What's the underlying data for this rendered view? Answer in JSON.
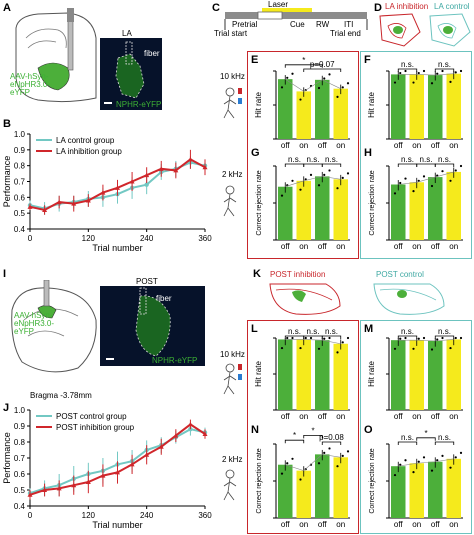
{
  "panels": {
    "A": {
      "letter": "A",
      "la": "LA",
      "fiber": "fiber",
      "virus": [
        "AAV-hSyn-",
        "eNpHR3.0-",
        "eYFP"
      ],
      "npHR": "NPHR-eYFP"
    },
    "B": {
      "letter": "B"
    },
    "C": {
      "letter": "C",
      "laser": "Laser",
      "pretrial": "Pretrial",
      "cue": "Cue",
      "rw": "RW",
      "iti": "ITI",
      "trial_start": "Trial start",
      "trial_end": "Trial end"
    },
    "D": {
      "letter": "D",
      "inhibition": "LA inhibition",
      "control": "LA control"
    },
    "E": {
      "letter": "E"
    },
    "F": {
      "letter": "F"
    },
    "G": {
      "letter": "G"
    },
    "H": {
      "letter": "H"
    },
    "I": {
      "letter": "I",
      "post": "POST",
      "fiber": "fiber",
      "virus": [
        "AAV-hSyn-",
        "eNpHR3.0-",
        "eYFP"
      ],
      "npHR": "NPHR-eYFP",
      "bregma": "Bragma -3.78mm"
    },
    "J": {
      "letter": "J"
    },
    "K": {
      "letter": "K",
      "inhibition": "POST inhibition",
      "control": "POST control"
    },
    "L": {
      "letter": "L"
    },
    "M": {
      "letter": "M"
    },
    "N": {
      "letter": "N"
    },
    "O": {
      "letter": "O"
    }
  },
  "freq": {
    "k10": "10 kHz",
    "k2": "2 kHz"
  },
  "labels": {
    "off": "off",
    "on": "on",
    "ns": "n.s.",
    "star": "*"
  },
  "chart_data": [
    {
      "id": "B",
      "type": "line",
      "xlabel": "Trial number",
      "ylabel": "Performance",
      "ylim": [
        0.4,
        1.0
      ],
      "yticks": [
        0.4,
        0.5,
        0.6,
        0.7,
        0.8,
        0.9,
        1.0
      ],
      "xticks": [
        0,
        120,
        240,
        360
      ],
      "legend": {
        "placement": "top-left"
      },
      "series": [
        {
          "name": "LA control group",
          "color": "#72c8c3",
          "x": [
            0,
            30,
            60,
            90,
            120,
            150,
            180,
            210,
            240,
            270,
            300,
            330,
            360
          ],
          "y": [
            0.55,
            0.53,
            0.56,
            0.57,
            0.59,
            0.6,
            0.62,
            0.66,
            0.68,
            0.76,
            0.78,
            0.82,
            0.8
          ],
          "err": [
            0.03,
            0.04,
            0.05,
            0.04,
            0.05,
            0.06,
            0.06,
            0.07,
            0.06,
            0.05,
            0.05,
            0.04,
            0.04
          ]
        },
        {
          "name": "LA inhibition group",
          "color": "#d0262b",
          "x": [
            0,
            30,
            60,
            90,
            120,
            150,
            180,
            210,
            240,
            270,
            300,
            330,
            360
          ],
          "y": [
            0.54,
            0.52,
            0.57,
            0.56,
            0.58,
            0.63,
            0.66,
            0.7,
            0.74,
            0.78,
            0.77,
            0.84,
            0.79
          ],
          "err": [
            0.02,
            0.03,
            0.04,
            0.05,
            0.04,
            0.05,
            0.05,
            0.06,
            0.05,
            0.05,
            0.05,
            0.06,
            0.05
          ]
        }
      ]
    },
    {
      "id": "J",
      "type": "line",
      "xlabel": "Trial number",
      "ylabel": "Performance",
      "ylim": [
        0.4,
        1.0
      ],
      "yticks": [
        0.4,
        0.5,
        0.6,
        0.7,
        0.8,
        0.9,
        1.0
      ],
      "xticks": [
        0,
        120,
        240,
        360
      ],
      "legend": {
        "placement": "top-left"
      },
      "series": [
        {
          "name": "POST control group",
          "color": "#72c8c3",
          "x": [
            0,
            30,
            60,
            90,
            120,
            150,
            180,
            210,
            240,
            270,
            300,
            330,
            360
          ],
          "y": [
            0.48,
            0.51,
            0.53,
            0.57,
            0.6,
            0.62,
            0.66,
            0.68,
            0.75,
            0.78,
            0.83,
            0.88,
            0.86
          ],
          "err": [
            0.03,
            0.05,
            0.07,
            0.08,
            0.07,
            0.08,
            0.08,
            0.07,
            0.06,
            0.05,
            0.04,
            0.04,
            0.03
          ]
        },
        {
          "name": "POST inhibition group",
          "color": "#d0262b",
          "x": [
            0,
            30,
            60,
            90,
            120,
            150,
            180,
            210,
            240,
            270,
            300,
            330,
            360
          ],
          "y": [
            0.47,
            0.5,
            0.51,
            0.53,
            0.55,
            0.59,
            0.61,
            0.66,
            0.72,
            0.77,
            0.84,
            0.91,
            0.85
          ],
          "err": [
            0.03,
            0.04,
            0.05,
            0.06,
            0.07,
            0.07,
            0.07,
            0.06,
            0.06,
            0.05,
            0.04,
            0.03,
            0.03
          ]
        }
      ]
    },
    {
      "id": "E",
      "type": "bar",
      "ylabel": "Hit rate",
      "ylim": [
        0,
        1
      ],
      "categories": [
        "off",
        "on",
        "off",
        "on"
      ],
      "values": [
        0.88,
        0.7,
        0.87,
        0.74
      ],
      "colors": [
        "#4caf3a",
        "#f5ea1c",
        "#4caf3a",
        "#f5ea1c"
      ],
      "sig": [
        {
          "from": 0,
          "to": 2,
          "text": "*",
          "level": 1.12
        },
        {
          "from": 1,
          "to": 3,
          "text": "p=0.07",
          "level": 1.05
        }
      ]
    },
    {
      "id": "F",
      "type": "bar",
      "ylabel": "Hit rate",
      "ylim": [
        0,
        1
      ],
      "categories": [
        "off",
        "on",
        "off",
        "on"
      ],
      "values": [
        0.95,
        0.95,
        0.94,
        0.96
      ],
      "colors": [
        "#4caf3a",
        "#f5ea1c",
        "#4caf3a",
        "#f5ea1c"
      ],
      "sig": [
        {
          "from": 0,
          "to": 1,
          "text": "n.s.",
          "level": 1.05
        },
        {
          "from": 2,
          "to": 3,
          "text": "n.s.",
          "level": 1.05
        }
      ]
    },
    {
      "id": "G",
      "type": "bar",
      "ylabel": "Correct rejection rate",
      "ylim": [
        0,
        1
      ],
      "categories": [
        "off",
        "on",
        "off",
        "on"
      ],
      "values": [
        0.72,
        0.8,
        0.86,
        0.82
      ],
      "colors": [
        "#4caf3a",
        "#f5ea1c",
        "#4caf3a",
        "#f5ea1c"
      ],
      "sig": [
        {
          "from": 0,
          "to": 1,
          "text": "n.s.",
          "level": 1.05
        },
        {
          "from": 1,
          "to": 2,
          "text": "n.s.",
          "level": 1.05
        },
        {
          "from": 2,
          "to": 3,
          "text": "n.s.",
          "level": 1.05
        }
      ]
    },
    {
      "id": "H",
      "type": "bar",
      "ylabel": "Correct rejection rate",
      "ylim": [
        0,
        1
      ],
      "categories": [
        "off",
        "on",
        "off",
        "on"
      ],
      "values": [
        0.75,
        0.78,
        0.85,
        0.92
      ],
      "colors": [
        "#4caf3a",
        "#f5ea1c",
        "#4caf3a",
        "#f5ea1c"
      ],
      "sig": [
        {
          "from": 0,
          "to": 1,
          "text": "n.s.",
          "level": 1.05
        },
        {
          "from": 1,
          "to": 2,
          "text": "n.s.",
          "level": 1.05
        },
        {
          "from": 2,
          "to": 3,
          "text": "n.s.",
          "level": 1.05
        }
      ]
    },
    {
      "id": "L",
      "type": "bar",
      "ylabel": "Hit rate",
      "ylim": [
        0,
        1
      ],
      "categories": [
        "off",
        "on",
        "off",
        "on"
      ],
      "values": [
        0.98,
        0.98,
        0.97,
        0.92
      ],
      "colors": [
        "#4caf3a",
        "#f5ea1c",
        "#4caf3a",
        "#f5ea1c"
      ],
      "sig": [
        {
          "from": 0,
          "to": 1,
          "text": "n.s.",
          "level": 1.05
        },
        {
          "from": 1,
          "to": 2,
          "text": "n.s.",
          "level": 1.05
        },
        {
          "from": 2,
          "to": 3,
          "text": "n.s.",
          "level": 1.05
        }
      ]
    },
    {
      "id": "M",
      "type": "bar",
      "ylabel": "Hit rate",
      "ylim": [
        0,
        1
      ],
      "categories": [
        "off",
        "on",
        "off",
        "on"
      ],
      "values": [
        0.97,
        0.97,
        0.96,
        0.98
      ],
      "colors": [
        "#4caf3a",
        "#f5ea1c",
        "#4caf3a",
        "#f5ea1c"
      ],
      "sig": [
        {
          "from": 0,
          "to": 1,
          "text": "n.s.",
          "level": 1.05
        },
        {
          "from": 2,
          "to": 3,
          "text": "n.s.",
          "level": 1.05
        }
      ]
    },
    {
      "id": "N",
      "type": "bar",
      "ylabel": "Correct rejection rate",
      "ylim": [
        0,
        1
      ],
      "categories": [
        "off",
        "on",
        "off",
        "on"
      ],
      "values": [
        0.72,
        0.64,
        0.86,
        0.82
      ],
      "colors": [
        "#4caf3a",
        "#f5ea1c",
        "#4caf3a",
        "#f5ea1c"
      ],
      "sig": [
        {
          "from": 0,
          "to": 1,
          "text": "*",
          "level": 1.08
        },
        {
          "from": 1,
          "to": 2,
          "text": "*",
          "level": 1.16
        },
        {
          "from": 2,
          "to": 3,
          "text": "p=0.08",
          "level": 1.05
        }
      ]
    },
    {
      "id": "O",
      "type": "bar",
      "ylabel": "Correct rejection rate",
      "ylim": [
        0,
        1
      ],
      "categories": [
        "off",
        "on",
        "off",
        "on"
      ],
      "values": [
        0.7,
        0.74,
        0.76,
        0.8
      ],
      "colors": [
        "#4caf3a",
        "#f5ea1c",
        "#4caf3a",
        "#f5ea1c"
      ],
      "sig": [
        {
          "from": 0,
          "to": 1,
          "text": "n.s.",
          "level": 1.05
        },
        {
          "from": 1,
          "to": 2,
          "text": "*",
          "level": 1.12
        },
        {
          "from": 2,
          "to": 3,
          "text": "n.s.",
          "level": 1.05
        }
      ]
    }
  ]
}
